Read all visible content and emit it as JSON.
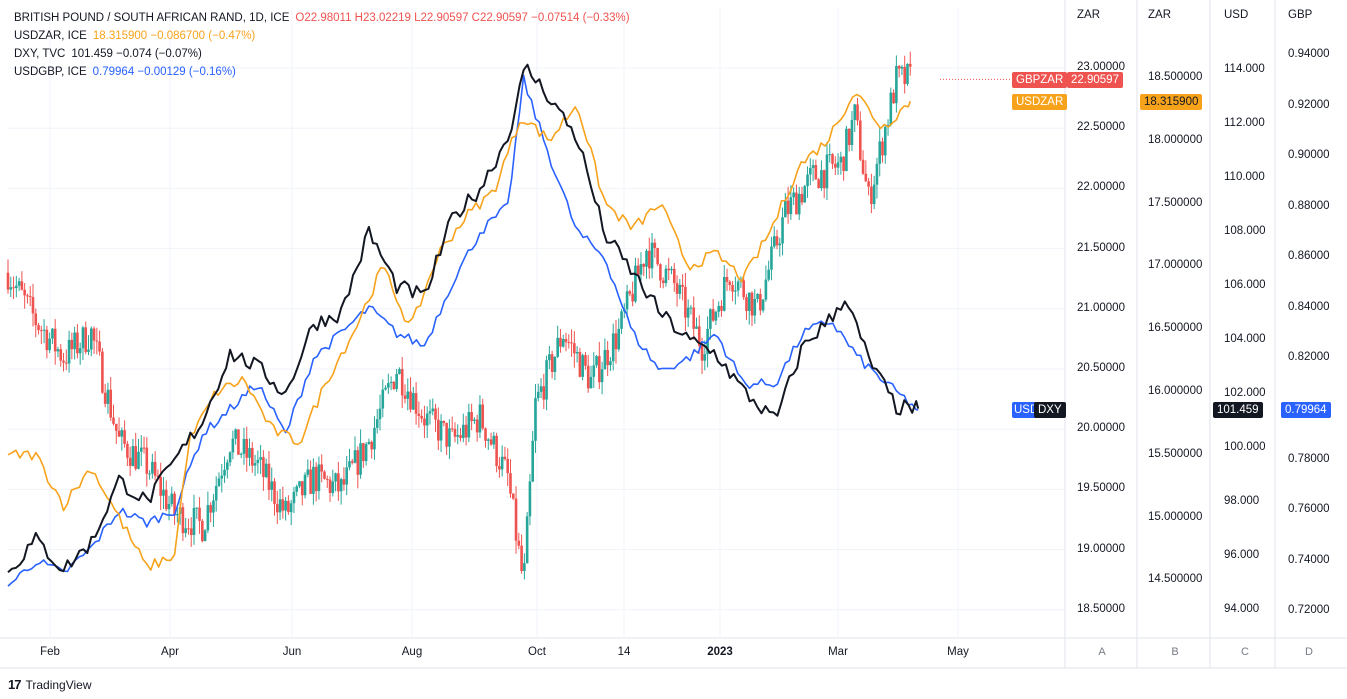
{
  "legend": [
    {
      "name": "BRITISH POUND / SOUTH AFRICAN RAND, 1D, ICE",
      "ohlc": "O22.98011 H23.02219 L22.90597 C22.90597 −0.07514 (−0.33%)",
      "color": "#ef5350"
    },
    {
      "name": "USDZAR, ICE",
      "ohlc": "18.315900 −0.086700 (−0.47%)",
      "color": "#f7a21b"
    },
    {
      "name": "DXY, TVC",
      "ohlc": "101.459 −0.074 (−0.07%)",
      "color": "#131722"
    },
    {
      "name": "USDGBP, ICE",
      "ohlc": "0.79964 −0.00129 (−0.16%)",
      "color": "#2962ff"
    }
  ],
  "scales": {
    "A": {
      "unit": "ZAR",
      "ticks": [
        "23.00000",
        "22.50000",
        "22.00000",
        "21.50000",
        "21.00000",
        "20.50000",
        "20.00000",
        "19.50000",
        "19.00000",
        "18.50000"
      ]
    },
    "B": {
      "unit": "ZAR",
      "ticks": [
        "18.500000",
        "18.000000",
        "17.500000",
        "17.000000",
        "16.500000",
        "16.000000",
        "15.500000",
        "15.000000",
        "14.500000"
      ]
    },
    "C": {
      "unit": "USD",
      "ticks": [
        "114.000",
        "112.000",
        "110.000",
        "108.000",
        "106.000",
        "104.000",
        "102.000",
        "100.000",
        "98.000",
        "96.000",
        "94.000"
      ]
    },
    "D": {
      "unit": "GBP",
      "ticks": [
        "0.94000",
        "0.92000",
        "0.90000",
        "0.88000",
        "0.86000",
        "0.84000",
        "0.82000",
        "0.80000",
        "0.78000",
        "0.76000",
        "0.74000",
        "0.72000"
      ]
    }
  },
  "scale_buttons": [
    "A",
    "B",
    "C",
    "D"
  ],
  "x_axis": [
    {
      "label": "Feb",
      "bold": false
    },
    {
      "label": "Apr",
      "bold": false
    },
    {
      "label": "Jun",
      "bold": false
    },
    {
      "label": "Aug",
      "bold": false
    },
    {
      "label": "Oct",
      "bold": false
    },
    {
      "label": "14",
      "bold": false
    },
    {
      "label": "2023",
      "bold": true
    },
    {
      "label": "Mar",
      "bold": false
    },
    {
      "label": "May",
      "bold": false
    }
  ],
  "price_tags": {
    "gbpzar_name": "GBPZAR",
    "gbpzar_value": "22.90597",
    "usdzar_name": "USDZAR",
    "usdzar_value": "18.315900",
    "dxy_name": "DXY",
    "dxy_value": "101.459",
    "usdgbp_name": "USDGBP",
    "usdgbp_value": "0.79964"
  },
  "colors": {
    "up": "#26a69a",
    "down": "#ef5350",
    "usdzar": "#f7a21b",
    "dxy": "#131722",
    "usdgbp": "#2962ff",
    "grid": "#f0f3fa"
  },
  "footer": {
    "logo_mark": "17",
    "logo_text": "TradingView"
  },
  "chart_data": {
    "type": "line",
    "x_range": [
      "2022-01-10",
      "2023-04-25"
    ],
    "series": [
      {
        "name": "GBPZAR",
        "style": "candles",
        "scale": "A",
        "close_path": [
          [
            "2022-01-10",
            21.3
          ],
          [
            "2022-01-24",
            20.9
          ],
          [
            "2022-02-07",
            20.6
          ],
          [
            "2022-02-21",
            20.8
          ],
          [
            "2022-03-07",
            19.9
          ],
          [
            "2022-03-21",
            19.7
          ],
          [
            "2022-04-04",
            19.3
          ],
          [
            "2022-04-18",
            19.2
          ],
          [
            "2022-05-02",
            19.9
          ],
          [
            "2022-05-16",
            19.7
          ],
          [
            "2022-05-30",
            19.3
          ],
          [
            "2022-06-13",
            19.6
          ],
          [
            "2022-06-27",
            19.5
          ],
          [
            "2022-07-11",
            19.9
          ],
          [
            "2022-07-25",
            20.5
          ],
          [
            "2022-08-08",
            20.1
          ],
          [
            "2022-08-22",
            19.9
          ],
          [
            "2022-09-05",
            20.1
          ],
          [
            "2022-09-19",
            19.6
          ],
          [
            "2022-09-27",
            18.7
          ],
          [
            "2022-10-03",
            20.2
          ],
          [
            "2022-10-17",
            20.8
          ],
          [
            "2022-10-31",
            20.4
          ],
          [
            "2022-11-14",
            20.8
          ],
          [
            "2022-11-28",
            21.5
          ],
          [
            "2022-12-12",
            21.2
          ],
          [
            "2022-12-26",
            20.7
          ],
          [
            "2023-01-09",
            21.3
          ],
          [
            "2023-01-23",
            21.0
          ],
          [
            "2023-02-06",
            21.8
          ],
          [
            "2023-02-20",
            22.1
          ],
          [
            "2023-03-06",
            22.2
          ],
          [
            "2023-03-13",
            22.6
          ],
          [
            "2023-03-20",
            21.9
          ],
          [
            "2023-03-27",
            22.4
          ],
          [
            "2023-04-03",
            22.9
          ],
          [
            "2023-04-10",
            22.91
          ]
        ]
      },
      {
        "name": "USDZAR",
        "scale": "B",
        "points": [
          [
            "2022-01-10",
            15.5
          ],
          [
            "2022-01-24",
            15.5
          ],
          [
            "2022-02-07",
            15.1
          ],
          [
            "2022-02-21",
            15.4
          ],
          [
            "2022-03-07",
            15.0
          ],
          [
            "2022-03-21",
            14.6
          ],
          [
            "2022-04-04",
            14.7
          ],
          [
            "2022-04-11",
            15.6
          ],
          [
            "2022-04-25",
            16.0
          ],
          [
            "2022-05-09",
            16.1
          ],
          [
            "2022-05-23",
            15.7
          ],
          [
            "2022-06-06",
            15.6
          ],
          [
            "2022-06-20",
            16.1
          ],
          [
            "2022-07-04",
            16.5
          ],
          [
            "2022-07-18",
            17.0
          ],
          [
            "2022-08-01",
            16.5
          ],
          [
            "2022-08-15",
            17.1
          ],
          [
            "2022-08-29",
            17.4
          ],
          [
            "2022-09-12",
            17.6
          ],
          [
            "2022-09-26",
            18.2
          ],
          [
            "2022-10-10",
            18.0
          ],
          [
            "2022-10-24",
            18.3
          ],
          [
            "2022-11-07",
            17.5
          ],
          [
            "2022-11-21",
            17.3
          ],
          [
            "2022-12-05",
            17.5
          ],
          [
            "2022-12-19",
            17.0
          ],
          [
            "2023-01-02",
            17.1
          ],
          [
            "2023-01-16",
            16.9
          ],
          [
            "2023-01-30",
            17.3
          ],
          [
            "2023-02-13",
            17.8
          ],
          [
            "2023-02-27",
            18.0
          ],
          [
            "2023-03-13",
            18.4
          ],
          [
            "2023-03-27",
            18.1
          ],
          [
            "2023-04-10",
            18.3159
          ]
        ]
      },
      {
        "name": "DXY",
        "scale": "C",
        "points": [
          [
            "2022-01-10",
            95.4
          ],
          [
            "2022-01-24",
            96.6
          ],
          [
            "2022-02-07",
            95.5
          ],
          [
            "2022-02-21",
            96.5
          ],
          [
            "2022-03-07",
            98.8
          ],
          [
            "2022-03-21",
            98.0
          ],
          [
            "2022-04-04",
            99.5
          ],
          [
            "2022-04-18",
            101.0
          ],
          [
            "2022-05-02",
            103.5
          ],
          [
            "2022-05-16",
            103.0
          ],
          [
            "2022-05-30",
            102.0
          ],
          [
            "2022-06-13",
            104.6
          ],
          [
            "2022-06-27",
            105.0
          ],
          [
            "2022-07-11",
            108.0
          ],
          [
            "2022-07-25",
            106.0
          ],
          [
            "2022-08-08",
            105.6
          ],
          [
            "2022-08-22",
            108.5
          ],
          [
            "2022-09-05",
            109.6
          ],
          [
            "2022-09-19",
            111.5
          ],
          [
            "2022-09-28",
            114.1
          ],
          [
            "2022-10-10",
            113.0
          ],
          [
            "2022-10-24",
            111.5
          ],
          [
            "2022-11-07",
            107.9
          ],
          [
            "2022-11-21",
            106.5
          ],
          [
            "2022-12-05",
            105.0
          ],
          [
            "2022-12-19",
            104.0
          ],
          [
            "2023-01-02",
            103.5
          ],
          [
            "2023-01-16",
            102.1
          ],
          [
            "2023-02-01",
            101.0
          ],
          [
            "2023-02-15",
            103.8
          ],
          [
            "2023-03-01",
            104.8
          ],
          [
            "2023-03-08",
            105.6
          ],
          [
            "2023-03-20",
            103.3
          ],
          [
            "2023-04-03",
            101.5
          ],
          [
            "2023-04-14",
            101.459
          ]
        ]
      },
      {
        "name": "USDGBP",
        "scale": "D",
        "points": [
          [
            "2022-01-10",
            0.73
          ],
          [
            "2022-01-24",
            0.74
          ],
          [
            "2022-02-07",
            0.735
          ],
          [
            "2022-02-21",
            0.745
          ],
          [
            "2022-03-07",
            0.76
          ],
          [
            "2022-03-21",
            0.755
          ],
          [
            "2022-04-04",
            0.76
          ],
          [
            "2022-04-18",
            0.79
          ],
          [
            "2022-05-02",
            0.8
          ],
          [
            "2022-05-16",
            0.81
          ],
          [
            "2022-05-30",
            0.79
          ],
          [
            "2022-06-13",
            0.82
          ],
          [
            "2022-06-27",
            0.83
          ],
          [
            "2022-07-11",
            0.84
          ],
          [
            "2022-07-25",
            0.83
          ],
          [
            "2022-08-08",
            0.825
          ],
          [
            "2022-08-22",
            0.85
          ],
          [
            "2022-09-05",
            0.87
          ],
          [
            "2022-09-19",
            0.88
          ],
          [
            "2022-09-27",
            0.93
          ],
          [
            "2022-10-10",
            0.9
          ],
          [
            "2022-10-24",
            0.87
          ],
          [
            "2022-11-07",
            0.86
          ],
          [
            "2022-11-21",
            0.83
          ],
          [
            "2022-12-05",
            0.815
          ],
          [
            "2022-12-19",
            0.82
          ],
          [
            "2023-01-02",
            0.83
          ],
          [
            "2023-01-16",
            0.81
          ],
          [
            "2023-02-01",
            0.81
          ],
          [
            "2023-02-15",
            0.83
          ],
          [
            "2023-03-01",
            0.835
          ],
          [
            "2023-03-15",
            0.82
          ],
          [
            "2023-03-29",
            0.81
          ],
          [
            "2023-04-14",
            0.79964
          ]
        ]
      }
    ]
  }
}
